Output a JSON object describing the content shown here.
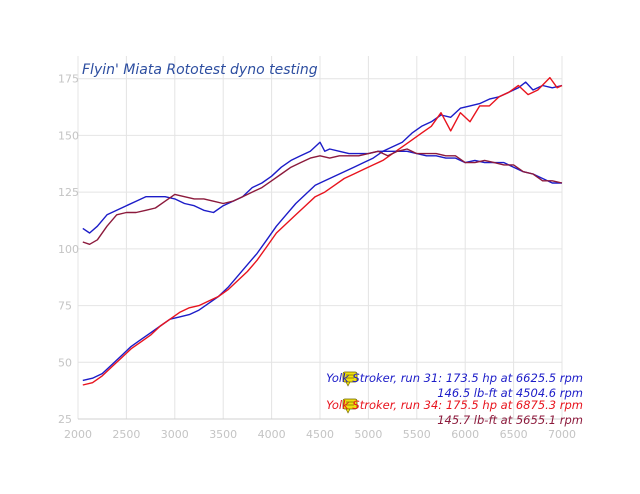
{
  "chart_data": {
    "type": "line",
    "title": "Flyin' Miata Rototest dyno testing",
    "xlabel": "",
    "ylabel": "",
    "xlim": [
      2000,
      7000
    ],
    "ylim": [
      25,
      185
    ],
    "x_ticks": [
      2000,
      2500,
      3000,
      3500,
      4000,
      4500,
      5000,
      5500,
      6000,
      6500,
      7000
    ],
    "y_ticks": [
      25,
      50,
      75,
      100,
      125,
      150,
      175
    ],
    "grid": true,
    "legend": "bottom-right",
    "series": [
      {
        "name": "run 31 hp",
        "color": "#1c1cc8",
        "points": [
          [
            2050,
            42
          ],
          [
            2150,
            43
          ],
          [
            2250,
            45
          ],
          [
            2350,
            49
          ],
          [
            2450,
            53
          ],
          [
            2550,
            57
          ],
          [
            2650,
            60
          ],
          [
            2750,
            63
          ],
          [
            2850,
            66
          ],
          [
            2950,
            69
          ],
          [
            3050,
            70
          ],
          [
            3150,
            71
          ],
          [
            3250,
            73
          ],
          [
            3350,
            76
          ],
          [
            3450,
            79
          ],
          [
            3550,
            83
          ],
          [
            3650,
            88
          ],
          [
            3750,
            93
          ],
          [
            3850,
            98
          ],
          [
            3950,
            104
          ],
          [
            4050,
            110
          ],
          [
            4150,
            115
          ],
          [
            4250,
            120
          ],
          [
            4350,
            124
          ],
          [
            4450,
            128
          ],
          [
            4550,
            130
          ],
          [
            4650,
            132
          ],
          [
            4750,
            134
          ],
          [
            4850,
            136
          ],
          [
            4950,
            138
          ],
          [
            5050,
            140
          ],
          [
            5150,
            143
          ],
          [
            5250,
            145
          ],
          [
            5350,
            147
          ],
          [
            5450,
            151
          ],
          [
            5550,
            154
          ],
          [
            5650,
            156
          ],
          [
            5750,
            159
          ],
          [
            5850,
            158
          ],
          [
            5950,
            162
          ],
          [
            6050,
            163
          ],
          [
            6150,
            164
          ],
          [
            6250,
            166
          ],
          [
            6350,
            167
          ],
          [
            6450,
            169
          ],
          [
            6550,
            171
          ],
          [
            6625,
            173.5
          ],
          [
            6700,
            170
          ],
          [
            6800,
            172
          ],
          [
            6900,
            171
          ],
          [
            7000,
            172
          ]
        ]
      },
      {
        "name": "run 34 hp",
        "color": "#e8141e",
        "points": [
          [
            2050,
            40
          ],
          [
            2150,
            41
          ],
          [
            2250,
            44
          ],
          [
            2350,
            48
          ],
          [
            2450,
            52
          ],
          [
            2550,
            56
          ],
          [
            2650,
            59
          ],
          [
            2750,
            62
          ],
          [
            2850,
            66
          ],
          [
            2950,
            69
          ],
          [
            3050,
            72
          ],
          [
            3150,
            74
          ],
          [
            3250,
            75
          ],
          [
            3350,
            77
          ],
          [
            3450,
            79
          ],
          [
            3550,
            82
          ],
          [
            3650,
            86
          ],
          [
            3750,
            90
          ],
          [
            3850,
            95
          ],
          [
            3950,
            101
          ],
          [
            4050,
            107
          ],
          [
            4150,
            111
          ],
          [
            4250,
            115
          ],
          [
            4350,
            119
          ],
          [
            4450,
            123
          ],
          [
            4550,
            125
          ],
          [
            4650,
            128
          ],
          [
            4750,
            131
          ],
          [
            4850,
            133
          ],
          [
            4950,
            135
          ],
          [
            5050,
            137
          ],
          [
            5150,
            139
          ],
          [
            5250,
            142
          ],
          [
            5350,
            145
          ],
          [
            5450,
            148
          ],
          [
            5550,
            151
          ],
          [
            5650,
            154
          ],
          [
            5750,
            160
          ],
          [
            5850,
            152
          ],
          [
            5950,
            160
          ],
          [
            6050,
            156
          ],
          [
            6150,
            163
          ],
          [
            6250,
            163
          ],
          [
            6350,
            167
          ],
          [
            6450,
            169
          ],
          [
            6550,
            172
          ],
          [
            6650,
            168
          ],
          [
            6750,
            170
          ],
          [
            6875,
            175.5
          ],
          [
            6950,
            171
          ],
          [
            7000,
            172
          ]
        ]
      },
      {
        "name": "run 31 lb-ft",
        "color": "#1c1cc8",
        "points": [
          [
            2050,
            109
          ],
          [
            2120,
            107
          ],
          [
            2200,
            110
          ],
          [
            2300,
            115
          ],
          [
            2400,
            117
          ],
          [
            2500,
            119
          ],
          [
            2600,
            121
          ],
          [
            2700,
            123
          ],
          [
            2800,
            123
          ],
          [
            2900,
            123
          ],
          [
            3000,
            122
          ],
          [
            3100,
            120
          ],
          [
            3200,
            119
          ],
          [
            3300,
            117
          ],
          [
            3400,
            116
          ],
          [
            3500,
            119
          ],
          [
            3600,
            121
          ],
          [
            3700,
            123
          ],
          [
            3800,
            127
          ],
          [
            3900,
            129
          ],
          [
            4000,
            132
          ],
          [
            4100,
            136
          ],
          [
            4200,
            139
          ],
          [
            4300,
            141
          ],
          [
            4400,
            143
          ],
          [
            4500,
            147
          ],
          [
            4550,
            143
          ],
          [
            4600,
            144
          ],
          [
            4700,
            143
          ],
          [
            4800,
            142
          ],
          [
            4900,
            142
          ],
          [
            5000,
            142
          ],
          [
            5100,
            143
          ],
          [
            5200,
            143
          ],
          [
            5300,
            143
          ],
          [
            5400,
            143
          ],
          [
            5500,
            142
          ],
          [
            5600,
            141
          ],
          [
            5700,
            141
          ],
          [
            5800,
            140
          ],
          [
            5900,
            140
          ],
          [
            6000,
            138
          ],
          [
            6100,
            139
          ],
          [
            6200,
            138
          ],
          [
            6300,
            138
          ],
          [
            6400,
            138
          ],
          [
            6500,
            136
          ],
          [
            6600,
            134
          ],
          [
            6700,
            133
          ],
          [
            6800,
            131
          ],
          [
            6900,
            129
          ],
          [
            7000,
            129
          ]
        ]
      },
      {
        "name": "run 34 lb-ft",
        "color": "#8c1a3c",
        "points": [
          [
            2050,
            103
          ],
          [
            2120,
            102
          ],
          [
            2200,
            104
          ],
          [
            2300,
            110
          ],
          [
            2400,
            115
          ],
          [
            2500,
            116
          ],
          [
            2600,
            116
          ],
          [
            2700,
            117
          ],
          [
            2800,
            118
          ],
          [
            2900,
            121
          ],
          [
            3000,
            124
          ],
          [
            3100,
            123
          ],
          [
            3200,
            122
          ],
          [
            3300,
            122
          ],
          [
            3400,
            121
          ],
          [
            3500,
            120
          ],
          [
            3600,
            121
          ],
          [
            3700,
            123
          ],
          [
            3800,
            125
          ],
          [
            3900,
            127
          ],
          [
            4000,
            130
          ],
          [
            4100,
            133
          ],
          [
            4200,
            136
          ],
          [
            4300,
            138
          ],
          [
            4400,
            140
          ],
          [
            4500,
            141
          ],
          [
            4600,
            140
          ],
          [
            4700,
            141
          ],
          [
            4800,
            141
          ],
          [
            4900,
            141
          ],
          [
            5000,
            142
          ],
          [
            5100,
            143
          ],
          [
            5200,
            141
          ],
          [
            5300,
            143
          ],
          [
            5400,
            144
          ],
          [
            5500,
            142
          ],
          [
            5600,
            142
          ],
          [
            5700,
            142
          ],
          [
            5800,
            141
          ],
          [
            5900,
            141
          ],
          [
            6000,
            138
          ],
          [
            6100,
            138
          ],
          [
            6200,
            139
          ],
          [
            6300,
            138
          ],
          [
            6400,
            137
          ],
          [
            6500,
            137
          ],
          [
            6600,
            134
          ],
          [
            6700,
            133
          ],
          [
            6800,
            130
          ],
          [
            6900,
            130
          ],
          [
            7000,
            129
          ]
        ]
      }
    ],
    "legend_entries": [
      {
        "color": "#1c1cc8",
        "icon_color": "#f0e010",
        "line1": "Yolk Stroker, run 31: 173.5 hp at 6625.5 rpm",
        "line2": "146.5 lb-ft at 4504.6 rpm"
      },
      {
        "color": "#e8141e",
        "line2_color": "#8c1a3c",
        "icon_color": "#f0e010",
        "line1": "Yolk Stroker, run 34: 175.5 hp at 6875.3 rpm",
        "line2": "145.7 lb-ft at 5655.1 rpm"
      }
    ],
    "title_color": "#2d4ea0",
    "grid_color": "#e4e4e4",
    "tick_color": "#c4c4c4"
  }
}
